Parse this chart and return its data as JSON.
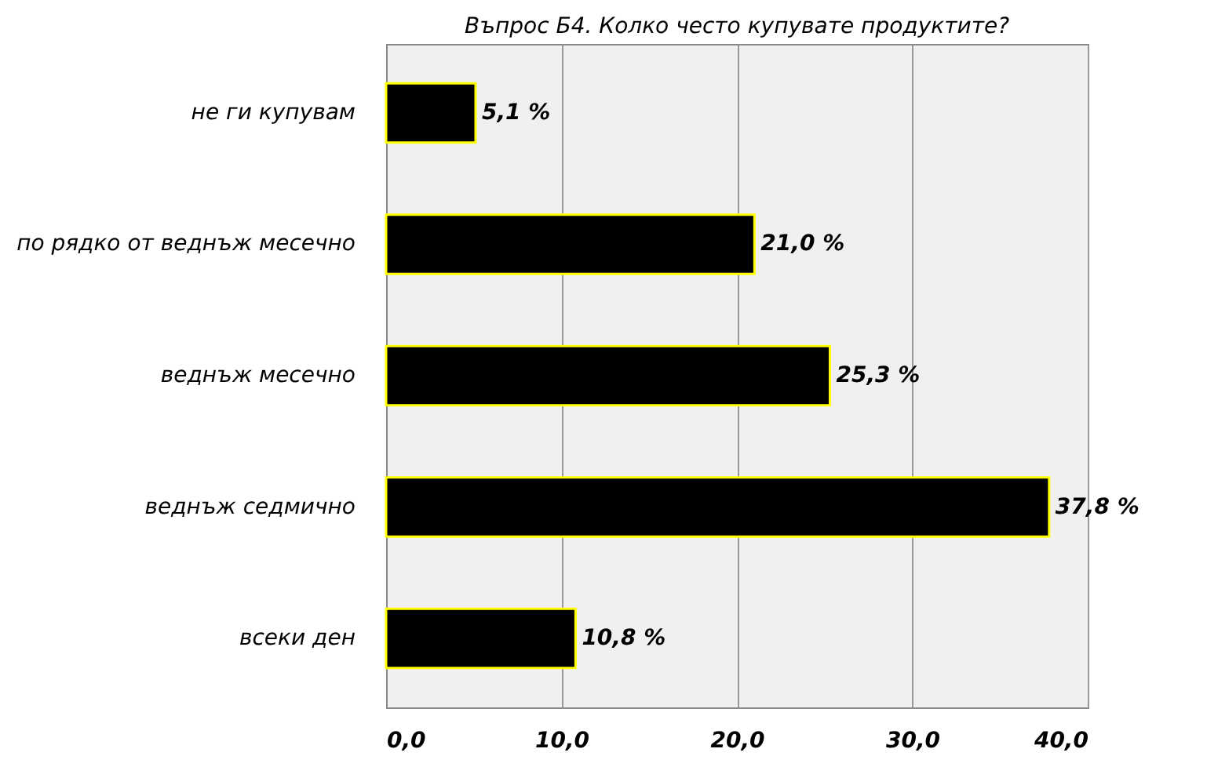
{
  "chart_data": {
    "type": "bar",
    "orientation": "horizontal",
    "title": "Въпрос Б4. Колко често купувате продуктите?",
    "categories": [
      "не ги купувам",
      "по рядко от веднъж месечно",
      "веднъж месечно",
      "веднъж седмично",
      "всеки ден"
    ],
    "values": [
      5.1,
      21.0,
      25.3,
      37.8,
      10.8
    ],
    "value_labels": [
      "5,1 %",
      "21,0 %",
      "25,3 %",
      "37,8 %",
      "10,8 %"
    ],
    "color": "#000000",
    "xlim": [
      0,
      40
    ],
    "xticks": [
      {
        "value": 0,
        "label": "0,0"
      },
      {
        "value": 10,
        "label": "10,0"
      },
      {
        "value": 20,
        "label": "20,0"
      },
      {
        "value": 30,
        "label": "30,0"
      },
      {
        "value": 40,
        "label": "40,0"
      }
    ],
    "grid": "x"
  }
}
